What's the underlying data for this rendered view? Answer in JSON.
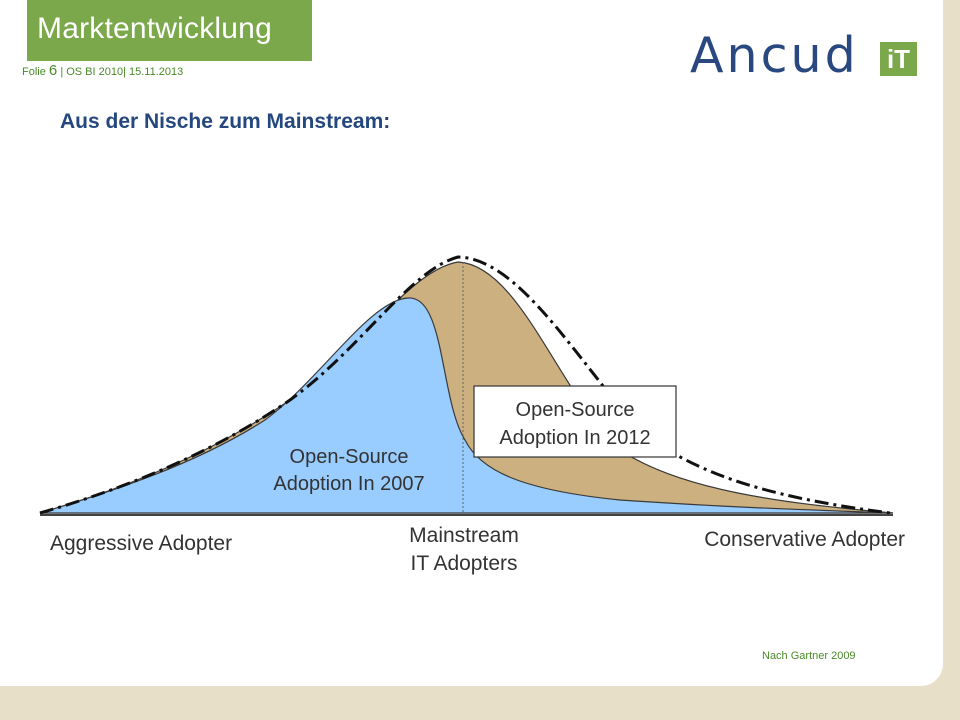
{
  "header": {
    "title": "Marktentwicklung",
    "folie_label": "Folie",
    "folie_number": "6",
    "folie_meta": "| OS BI 2010|  15.11.2013"
  },
  "logo": {
    "word": "Ancud",
    "badge": "iT"
  },
  "subtitle": "Aus der Nische zum Mainstream:",
  "diagram": {
    "box_2012_line1": "Open-Source",
    "box_2012_line2": "Adoption In 2012",
    "label_2007_line1": "Open-Source",
    "label_2007_line2": "Adoption In 2007",
    "axis_left": "Aggressive Adopter",
    "axis_mid_line1": "Mainstream",
    "axis_mid_line2": "IT Adopters",
    "axis_right": "Conservative Adopter",
    "colors": {
      "area_2007": "#99ccff",
      "area_2012": "#ccb080",
      "green": "#7aa84b",
      "navy": "#24487e"
    }
  },
  "source_note": "Nach Gartner 2009"
}
